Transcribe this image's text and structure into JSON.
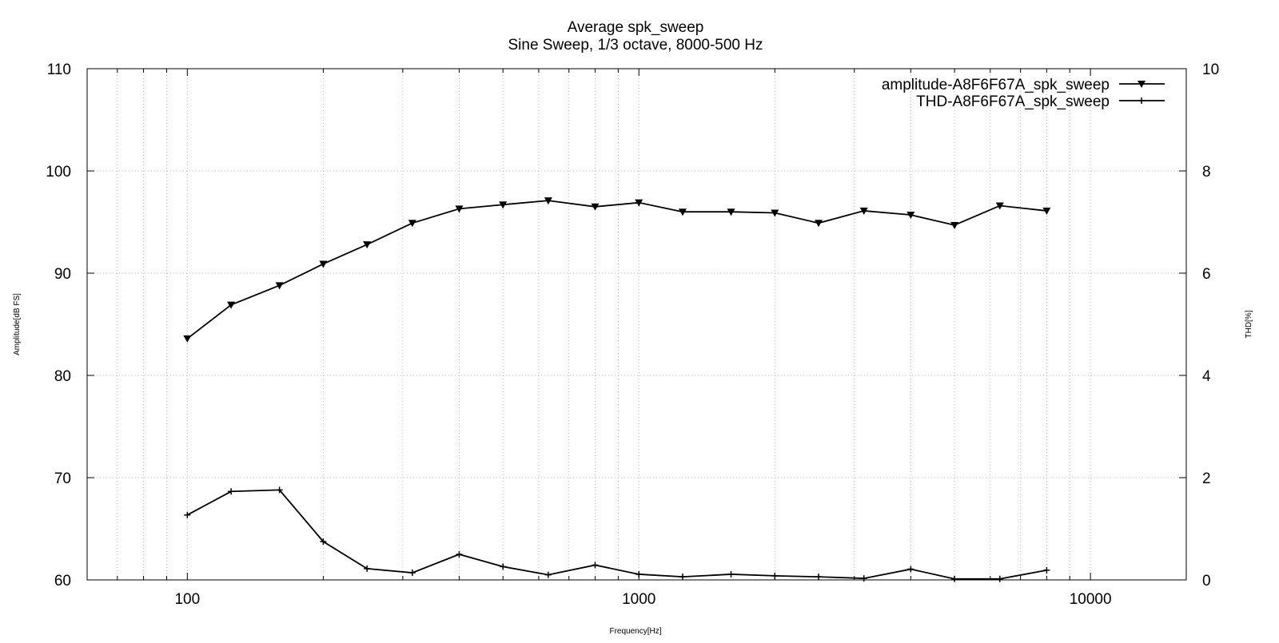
{
  "chart_data": {
    "type": "line",
    "title": "Average spk_sweep",
    "subtitle": "Sine Sweep, 1/3 octave, 8000-500 Hz",
    "xlabel": "Frequency[Hz]",
    "ylabel": "Amplitude[dB FS]",
    "y2label": "THD[%]",
    "xscale": "log",
    "xlim": [
      60,
      16300
    ],
    "ylim": [
      60,
      110
    ],
    "y2lim": [
      0,
      10
    ],
    "xticks": [
      "100",
      "1000",
      "10000"
    ],
    "xtick_values": [
      100,
      1000,
      10000
    ],
    "yticks": [
      "60",
      "70",
      "80",
      "90",
      "100",
      "110"
    ],
    "y2ticks": [
      "0",
      "2",
      "4",
      "6",
      "8",
      "10"
    ],
    "grid": true,
    "legend_position": "top-right",
    "x": [
      100,
      125,
      160,
      200,
      250,
      315,
      400,
      500,
      630,
      800,
      1000,
      1250,
      1600,
      2000,
      2500,
      3150,
      4000,
      5000,
      6300,
      8000
    ],
    "series": [
      {
        "name": "amplitude-A8F6F67A_spk_sweep",
        "axis": "y",
        "marker": "triangle-down",
        "values": [
          83.6,
          86.9,
          88.8,
          90.9,
          92.8,
          94.9,
          96.3,
          96.7,
          97.1,
          96.5,
          96.9,
          96.0,
          96.0,
          95.9,
          94.9,
          96.1,
          95.7,
          94.7,
          96.6,
          96.1
        ]
      },
      {
        "name": "THD-A8F6F67A_spk_sweep",
        "axis": "y2",
        "marker": "plus",
        "values": [
          1.27,
          1.73,
          1.76,
          0.75,
          0.22,
          0.14,
          0.5,
          0.26,
          0.1,
          0.29,
          0.11,
          0.06,
          0.11,
          0.08,
          0.06,
          0.03,
          0.21,
          0.02,
          0.02,
          0.19
        ]
      }
    ]
  }
}
